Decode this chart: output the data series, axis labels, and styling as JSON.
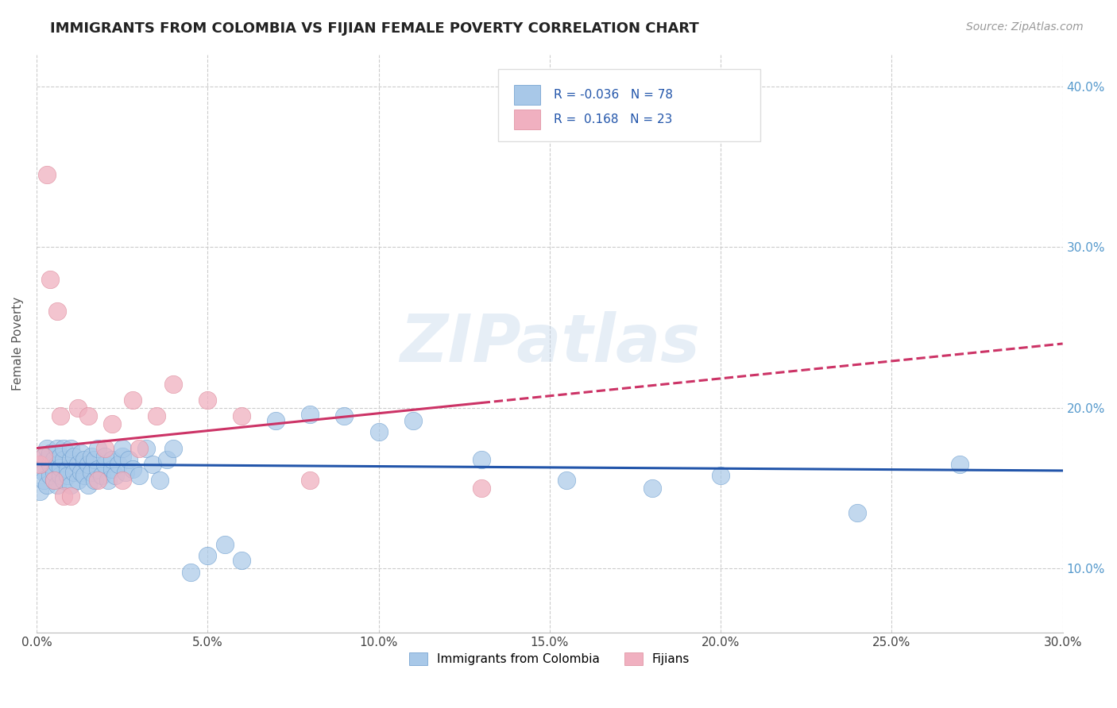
{
  "title": "IMMIGRANTS FROM COLOMBIA VS FIJIAN FEMALE POVERTY CORRELATION CHART",
  "source_text": "Source: ZipAtlas.com",
  "ylabel": "Female Poverty",
  "xlim": [
    0.0,
    0.3
  ],
  "ylim": [
    0.06,
    0.42
  ],
  "xtick_labels": [
    "0.0%",
    "5.0%",
    "10.0%",
    "15.0%",
    "20.0%",
    "25.0%",
    "30.0%"
  ],
  "xtick_vals": [
    0.0,
    0.05,
    0.1,
    0.15,
    0.2,
    0.25,
    0.3
  ],
  "ytick_labels": [
    "10.0%",
    "20.0%",
    "30.0%",
    "40.0%"
  ],
  "ytick_vals": [
    0.1,
    0.2,
    0.3,
    0.4
  ],
  "blue_color": "#a8c8e8",
  "blue_edge_color": "#6699cc",
  "blue_line_color": "#2255aa",
  "pink_color": "#f0b0c0",
  "pink_edge_color": "#dd8899",
  "pink_line_color": "#cc3366",
  "legend_R1": "-0.036",
  "legend_N1": "78",
  "legend_R2": "0.168",
  "legend_N2": "23",
  "blue_scatter_x": [
    0.001,
    0.001,
    0.002,
    0.002,
    0.002,
    0.003,
    0.003,
    0.003,
    0.004,
    0.004,
    0.004,
    0.005,
    0.005,
    0.005,
    0.006,
    0.006,
    0.006,
    0.007,
    0.007,
    0.007,
    0.008,
    0.008,
    0.008,
    0.009,
    0.009,
    0.01,
    0.01,
    0.01,
    0.011,
    0.011,
    0.012,
    0.012,
    0.013,
    0.013,
    0.014,
    0.014,
    0.015,
    0.015,
    0.016,
    0.016,
    0.017,
    0.017,
    0.018,
    0.018,
    0.019,
    0.02,
    0.02,
    0.021,
    0.022,
    0.022,
    0.023,
    0.024,
    0.025,
    0.025,
    0.026,
    0.027,
    0.028,
    0.03,
    0.032,
    0.034,
    0.036,
    0.038,
    0.04,
    0.045,
    0.05,
    0.055,
    0.06,
    0.07,
    0.08,
    0.09,
    0.1,
    0.11,
    0.13,
    0.155,
    0.18,
    0.2,
    0.24,
    0.27
  ],
  "blue_scatter_y": [
    0.162,
    0.148,
    0.16,
    0.155,
    0.17,
    0.152,
    0.168,
    0.175,
    0.158,
    0.165,
    0.172,
    0.155,
    0.168,
    0.16,
    0.152,
    0.165,
    0.175,
    0.158,
    0.17,
    0.163,
    0.155,
    0.168,
    0.175,
    0.162,
    0.158,
    0.152,
    0.168,
    0.175,
    0.16,
    0.17,
    0.155,
    0.165,
    0.16,
    0.172,
    0.158,
    0.168,
    0.152,
    0.165,
    0.16,
    0.17,
    0.155,
    0.168,
    0.162,
    0.175,
    0.158,
    0.165,
    0.17,
    0.155,
    0.162,
    0.168,
    0.158,
    0.165,
    0.17,
    0.175,
    0.16,
    0.168,
    0.162,
    0.158,
    0.175,
    0.165,
    0.155,
    0.168,
    0.175,
    0.098,
    0.108,
    0.115,
    0.105,
    0.192,
    0.196,
    0.195,
    0.185,
    0.192,
    0.168,
    0.155,
    0.15,
    0.158,
    0.135,
    0.165
  ],
  "pink_scatter_x": [
    0.001,
    0.002,
    0.003,
    0.004,
    0.005,
    0.006,
    0.007,
    0.008,
    0.01,
    0.012,
    0.015,
    0.018,
    0.02,
    0.022,
    0.025,
    0.028,
    0.03,
    0.035,
    0.04,
    0.05,
    0.06,
    0.08,
    0.13
  ],
  "pink_scatter_y": [
    0.165,
    0.17,
    0.345,
    0.28,
    0.155,
    0.26,
    0.195,
    0.145,
    0.145,
    0.2,
    0.195,
    0.155,
    0.175,
    0.19,
    0.155,
    0.205,
    0.175,
    0.195,
    0.215,
    0.205,
    0.195,
    0.155,
    0.15
  ],
  "blue_trend_start_y": 0.165,
  "blue_trend_end_y": 0.161,
  "pink_trend_start_y": 0.175,
  "pink_trend_end_y": 0.24,
  "watermark": "ZIPatlas",
  "bg_color": "#ffffff",
  "grid_color": "#cccccc"
}
